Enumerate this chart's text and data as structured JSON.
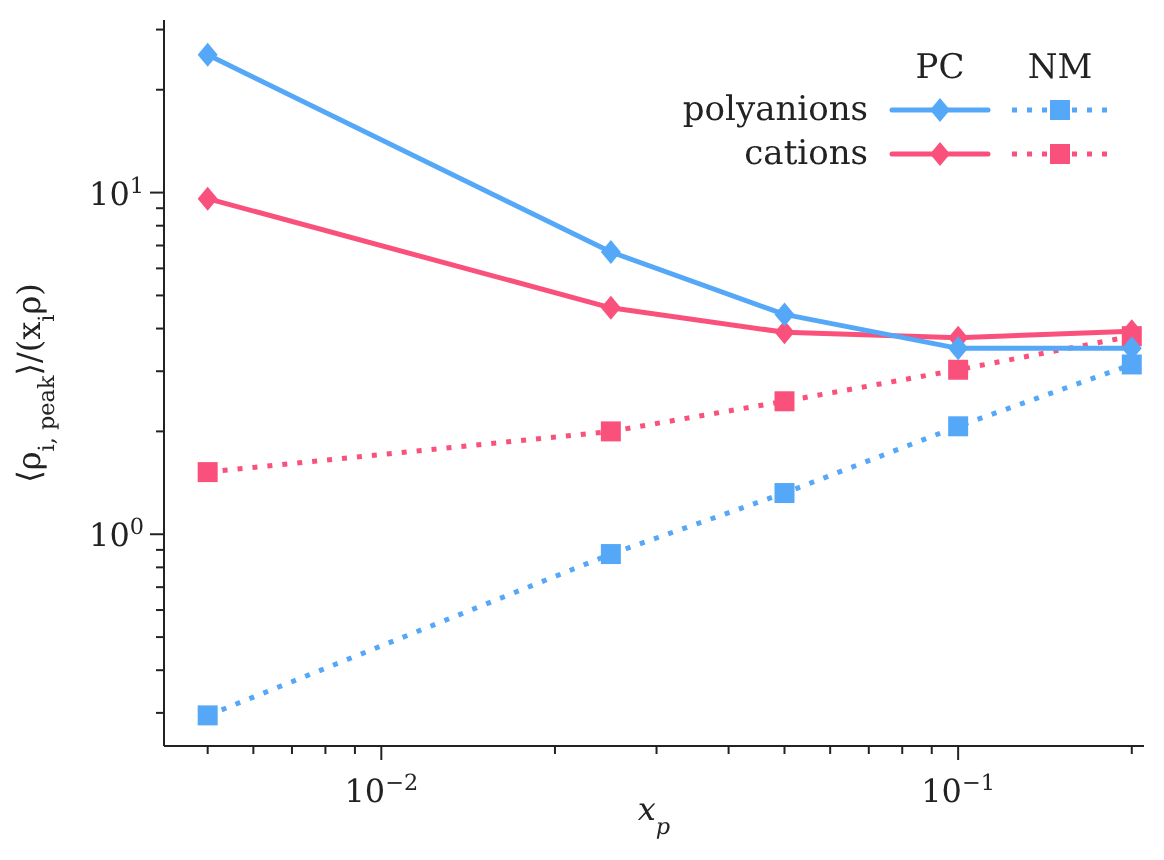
{
  "chart_data": {
    "type": "line",
    "xlabel": "x$_{p}$",
    "ylabel": "⟨ρ$_{i, peak}$⟩/(x$_{i}$ρ)",
    "x": [
      0.005,
      0.025,
      0.05,
      0.1,
      0.2
    ],
    "series": [
      {
        "name": "polyanions",
        "color": "#55a8f7",
        "marker": "diamond",
        "line_style": "solid",
        "values": [
          25.3,
          6.7,
          4.4,
          3.5,
          3.5
        ]
      },
      {
        "name": "cations",
        "color": "#fa517c",
        "marker": "diamond",
        "line_style": "solid",
        "values": [
          9.6,
          4.6,
          3.9,
          3.76,
          3.93
        ]
      },
      {
        "color": "#55a8f7",
        "marker": "square",
        "line_style": "dotted",
        "values": [
          0.295,
          0.875,
          1.32,
          2.07,
          3.14
        ]
      },
      {
        "color": "#fa517c",
        "marker": "square",
        "line_style": "dotted",
        "values": [
          1.52,
          2.0,
          2.45,
          3.03,
          3.8
        ]
      }
    ],
    "annotations": [
      "PC",
      "NM"
    ],
    "log": "xy",
    "legend": "top right",
    "xlim": [
      0.0042,
      0.21
    ],
    "xticks": [
      {
        "value": 0.005,
        "label": null
      },
      {
        "value": 0.006,
        "label": null
      },
      {
        "value": 0.007,
        "label": null
      },
      {
        "value": 0.008,
        "label": null
      },
      {
        "value": 0.009,
        "label": null
      },
      {
        "value": 0.01,
        "label": "10$^{−2}$"
      },
      {
        "value": 0.02,
        "label": null
      },
      {
        "value": 0.03,
        "label": null
      },
      {
        "value": 0.04,
        "label": null
      },
      {
        "value": 0.05,
        "label": null
      },
      {
        "value": 0.06,
        "label": null
      },
      {
        "value": 0.07,
        "label": null
      },
      {
        "value": 0.08,
        "label": null
      },
      {
        "value": 0.09,
        "label": null
      },
      {
        "value": 0.1,
        "label": "10$^{−1}$"
      },
      {
        "value": 0.2,
        "label": null
      }
    ],
    "ylim": [
      0.24,
      32
    ],
    "yticks": [
      {
        "value": 0.3,
        "label": null
      },
      {
        "value": 0.4,
        "label": null
      },
      {
        "value": 0.5,
        "label": null
      },
      {
        "value": 0.6,
        "label": null
      },
      {
        "value": 0.7,
        "label": null
      },
      {
        "value": 0.8,
        "label": null
      },
      {
        "value": 0.9,
        "label": null
      },
      {
        "value": 1,
        "label": "10$^{0}$"
      },
      {
        "value": 2,
        "label": null
      },
      {
        "value": 3,
        "label": null
      },
      {
        "value": 4,
        "label": null
      },
      {
        "value": 5,
        "label": null
      },
      {
        "value": 6,
        "label": null
      },
      {
        "value": 7,
        "label": null
      },
      {
        "value": 8,
        "label": null
      },
      {
        "value": 9,
        "label": null
      },
      {
        "value": 10,
        "label": "10$^{1}$"
      },
      {
        "value": 20,
        "label": null
      },
      {
        "value": 30,
        "label": null
      }
    ]
  }
}
